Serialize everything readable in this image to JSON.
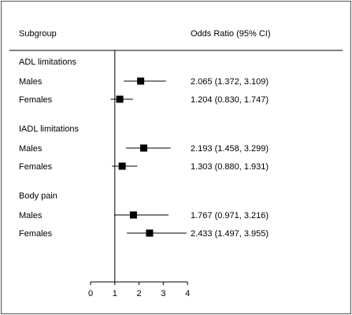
{
  "headers": {
    "subgroup": "Subgroup",
    "odds_ratio": "Odds Ratio (95% CI)"
  },
  "chart_data": {
    "type": "forest",
    "reference_line": 1,
    "xlim": [
      0,
      4
    ],
    "x_ticks": [
      0,
      1,
      2,
      3,
      4
    ],
    "groups": [
      {
        "label": "ADL limitations",
        "rows": [
          {
            "label": "Males",
            "or": 2.065,
            "lower": 1.372,
            "upper": 3.109,
            "ci_text": "2.065 (1.372, 3.109)"
          },
          {
            "label": "Females",
            "or": 1.204,
            "lower": 0.83,
            "upper": 1.747,
            "ci_text": "1.204 (0.830, 1.747)"
          }
        ]
      },
      {
        "label": "IADL limitations",
        "rows": [
          {
            "label": "Males",
            "or": 2.193,
            "lower": 1.458,
            "upper": 3.299,
            "ci_text": "2.193 (1.458, 3.299)"
          },
          {
            "label": "Females",
            "or": 1.303,
            "lower": 0.88,
            "upper": 1.931,
            "ci_text": "1.303 (0.880, 1.931)"
          }
        ]
      },
      {
        "label": "Body pain",
        "rows": [
          {
            "label": "Males",
            "or": 1.767,
            "lower": 0.971,
            "upper": 3.216,
            "ci_text": "1.767 (0.971, 3.216)"
          },
          {
            "label": "Females",
            "or": 2.433,
            "lower": 1.497,
            "upper": 3.955,
            "ci_text": "2.433 (1.497, 3.955)"
          }
        ]
      }
    ]
  }
}
